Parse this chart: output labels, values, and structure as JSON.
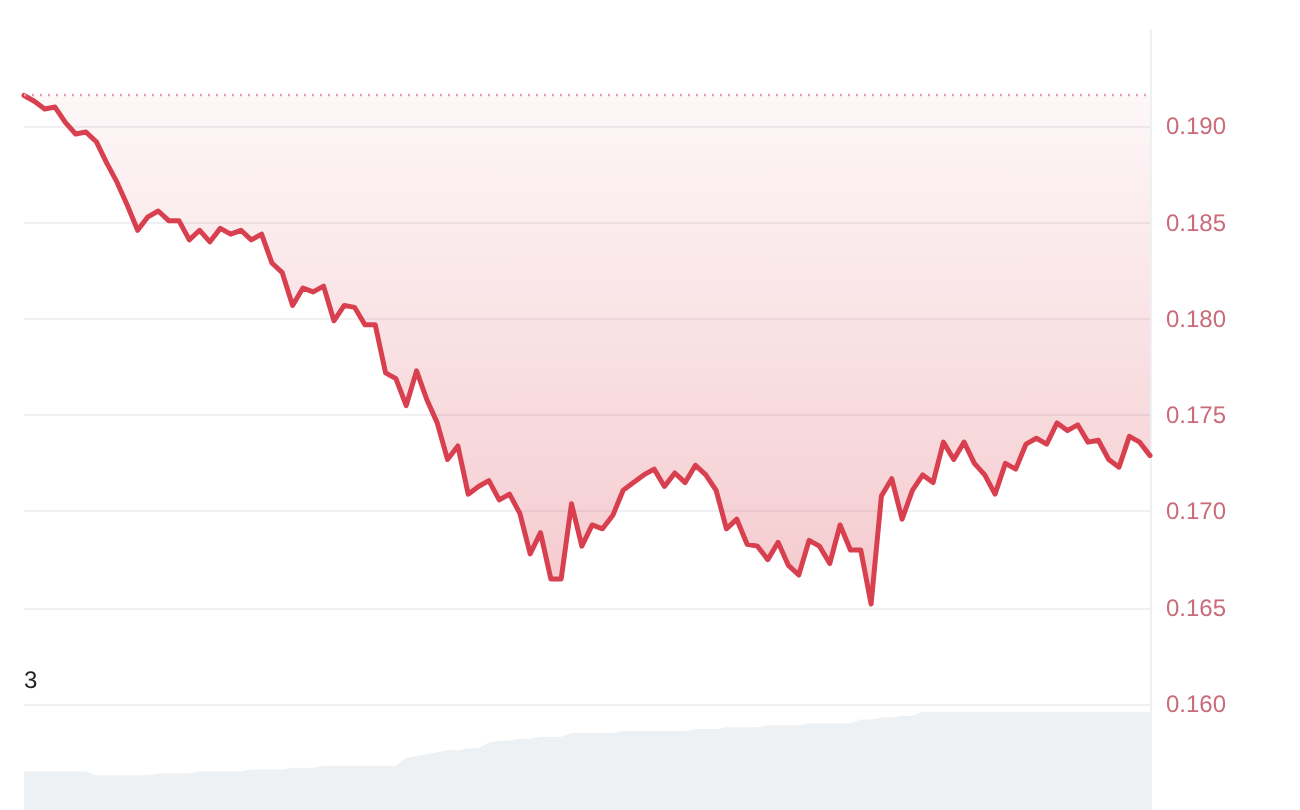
{
  "chart_data": {
    "type": "line",
    "categories": [
      null,
      null,
      null,
      null,
      null,
      null,
      null,
      null,
      null,
      null,
      null,
      null,
      null,
      null,
      null,
      null,
      null,
      null,
      null,
      null,
      null,
      null,
      null,
      null,
      null,
      null,
      null,
      null,
      null,
      null,
      null,
      null,
      null,
      null,
      null,
      null,
      null,
      null,
      null,
      null,
      null,
      null,
      null,
      null,
      null,
      null,
      null,
      null,
      null,
      null,
      null,
      null,
      null,
      null,
      null,
      null,
      null,
      null,
      null,
      null,
      null,
      null,
      null,
      null,
      null,
      null,
      null,
      null,
      null,
      null,
      null,
      null,
      null,
      null,
      null,
      null,
      null,
      null,
      null,
      null,
      null,
      null,
      null,
      null,
      null,
      null,
      null,
      null,
      null,
      null,
      null,
      null,
      null,
      null,
      null,
      null,
      null,
      null,
      null,
      null,
      null,
      null,
      null,
      null,
      null,
      null,
      null,
      null,
      null,
      null
    ],
    "series": [
      {
        "type": "area",
        "color": "#eef1f4",
        "values": [
          0.1565,
          0.1565,
          0.1565,
          0.1565,
          0.1565,
          0.1565,
          0.1565,
          0.1563,
          0.1563,
          0.1563,
          0.1563,
          0.1563,
          0.1563,
          0.1564,
          0.1564,
          0.1564,
          0.1564,
          0.1565,
          0.1565,
          0.1565,
          0.1565,
          0.1565,
          0.1566,
          0.1566,
          0.1566,
          0.1566,
          0.1567,
          0.1567,
          0.1567,
          0.1568,
          0.1568,
          0.1568,
          0.1568,
          0.1568,
          0.1568,
          0.1568,
          0.1568,
          0.1572,
          0.1573,
          0.1574,
          0.1575,
          0.1576,
          0.1576,
          0.1577,
          0.1577,
          0.158,
          0.1581,
          0.1581,
          0.1582,
          0.1582,
          0.1583,
          0.1583,
          0.1583,
          0.1585,
          0.1585,
          0.1585,
          0.1585,
          0.1585,
          0.1586,
          0.1586,
          0.1586,
          0.1586,
          0.1586,
          0.1586,
          0.1586,
          0.1587,
          0.1587,
          0.1587,
          0.1588,
          0.1588,
          0.1588,
          0.1588,
          0.1589,
          0.1589,
          0.1589,
          0.1589,
          0.159,
          0.159,
          0.159,
          0.159,
          0.159,
          0.1592,
          0.1592,
          0.1593,
          0.1593,
          0.1594,
          0.1594,
          0.1596,
          0.1596,
          0.1596,
          0.1596,
          0.1596,
          0.1596,
          0.1596,
          0.1596,
          0.1596,
          0.1596,
          0.1596,
          0.1596,
          0.1596,
          0.1596,
          0.1596,
          0.1596,
          0.1596,
          0.1596,
          0.1596,
          0.1596,
          0.1596,
          0.1596,
          0.1596
        ]
      },
      {
        "color": "#d9404f",
        "values": [
          0.1916,
          0.1913,
          0.1909,
          0.191,
          0.1902,
          0.1896,
          0.1897,
          0.1892,
          0.1881,
          0.1871,
          0.1859,
          0.1846,
          0.1853,
          0.1856,
          0.1851,
          0.1851,
          0.1841,
          0.1846,
          0.184,
          0.1847,
          0.1844,
          0.1846,
          0.1841,
          0.1844,
          0.1829,
          0.1824,
          0.1807,
          0.1816,
          0.1814,
          0.1817,
          0.1799,
          0.1807,
          0.1806,
          0.1797,
          0.1797,
          0.1772,
          0.1769,
          0.1755,
          0.1773,
          0.1758,
          0.1746,
          0.1727,
          0.1734,
          0.1709,
          0.1713,
          0.1716,
          0.1706,
          0.1709,
          0.1699,
          0.1678,
          0.1689,
          0.1665,
          0.1665,
          0.1704,
          0.1682,
          0.1693,
          0.1691,
          0.1698,
          0.1711,
          0.1715,
          0.1719,
          0.1722,
          0.1713,
          0.172,
          0.1715,
          0.1724,
          0.1719,
          0.1711,
          0.1691,
          0.1696,
          0.1683,
          0.1682,
          0.1675,
          0.1684,
          0.1672,
          0.1667,
          0.1685,
          0.1682,
          0.1673,
          0.1693,
          0.168,
          0.168,
          0.1652,
          0.1708,
          0.1717,
          0.1696,
          0.1711,
          0.1719,
          0.1715,
          0.1736,
          0.1727,
          0.1736,
          0.1725,
          0.1719,
          0.1709,
          0.1725,
          0.1722,
          0.1735,
          0.1738,
          0.1735,
          0.1746,
          0.1742,
          0.1745,
          0.1736,
          0.1737,
          0.1727,
          0.1723,
          0.1739,
          0.1736,
          0.1729
        ]
      }
    ],
    "ylim": [
      0.1545,
      0.195
    ],
    "yticks": [
      {
        "value": 0.16,
        "label": "0.160"
      },
      {
        "value": 0.165,
        "label": "0.165"
      },
      {
        "value": 0.17,
        "label": "0.170"
      },
      {
        "value": 0.175,
        "label": "0.175"
      },
      {
        "value": 0.18,
        "label": "0.180"
      },
      {
        "value": 0.185,
        "label": "0.185"
      },
      {
        "value": 0.19,
        "label": "0.190"
      }
    ],
    "ref_lines": [
      {
        "axis": "y",
        "value": 0.1916,
        "color": "#e8a0a8",
        "line_style": "dotted"
      }
    ],
    "annotations": [
      "3"
    ],
    "grid": "y",
    "marker": "none",
    "line_style": "solid",
    "tick_labels": "y"
  }
}
